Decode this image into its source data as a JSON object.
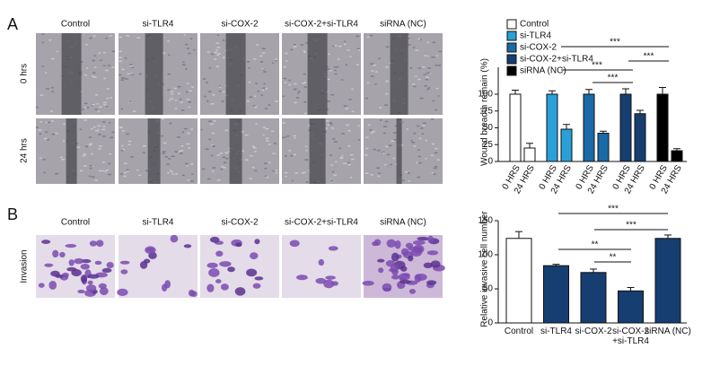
{
  "panels": {
    "a": "A",
    "b": "B"
  },
  "image_columns": [
    "Control",
    "si-TLR4",
    "si-COX-2",
    "si-COX-2+si-TLR4",
    "siRNA (NC)"
  ],
  "panel_a_rows": [
    "0 hrs",
    "24 hrs"
  ],
  "panel_b_rows": [
    "Invasion"
  ],
  "chart_data": [
    {
      "type": "bar",
      "y_label": "Wound breadth remain (%)",
      "categories": [
        "0 HRS",
        "24 HRS"
      ],
      "series": [
        {
          "name": "Control",
          "color": "#ffffff",
          "values": [
            100,
            20
          ],
          "errors": [
            6,
            7
          ]
        },
        {
          "name": "si-TLR4",
          "color": "#29a0d8",
          "values": [
            100,
            48
          ],
          "errors": [
            5,
            7
          ]
        },
        {
          "name": "si-COX-2",
          "color": "#1a6aa8",
          "values": [
            100,
            42
          ],
          "errors": [
            7,
            3
          ]
        },
        {
          "name": "si-COX-2+si-TLR4",
          "color": "#163e70",
          "values": [
            100,
            71
          ],
          "errors": [
            8,
            5
          ]
        },
        {
          "name": "siRNA (NC)",
          "color": "#000000",
          "values": [
            100,
            16
          ],
          "errors": [
            10,
            3
          ]
        }
      ],
      "ylim": [
        0,
        140
      ],
      "yticks": [
        0,
        25,
        50,
        75,
        100
      ],
      "annotations": [
        "***",
        "***",
        "***",
        "***"
      ]
    },
    {
      "type": "bar",
      "y_label": "Relative invasive cell number",
      "categories": [
        "Control",
        "si-TLR4",
        "si-COX-2",
        "si-COX-2\n+si-TLR4",
        "siRNA (NC)"
      ],
      "values": [
        124,
        84,
        74,
        47,
        124
      ],
      "errors": [
        10,
        2,
        5,
        5,
        5
      ],
      "colors": [
        "#ffffff",
        "#163e70",
        "#163e70",
        "#163e70",
        "#163e70"
      ],
      "ylim": [
        0,
        150
      ],
      "yticks": [
        0,
        50,
        100,
        150
      ],
      "annotations": [
        "***",
        "***",
        "**",
        "**"
      ]
    }
  ]
}
